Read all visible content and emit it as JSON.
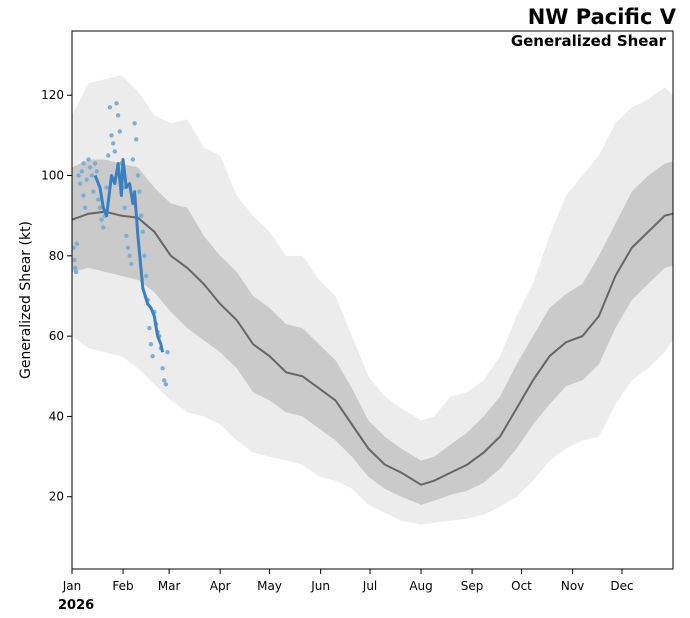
{
  "chart_data": {
    "type": "line",
    "title": "NW Pacific V",
    "subtitle": "Generalized Shear",
    "ylabel": "Generalized Shear (kt)",
    "xlabel": "",
    "year_label": "2026",
    "xlim": [
      0,
      365
    ],
    "ylim": [
      2,
      136
    ],
    "y_ticks": [
      20,
      40,
      60,
      80,
      100,
      120
    ],
    "x_ticks": [
      {
        "label": "Jan",
        "day": 0
      },
      {
        "label": "Feb",
        "day": 31
      },
      {
        "label": "Mar",
        "day": 59
      },
      {
        "label": "Apr",
        "day": 90
      },
      {
        "label": "May",
        "day": 120
      },
      {
        "label": "Jun",
        "day": 151
      },
      {
        "label": "Jul",
        "day": 181
      },
      {
        "label": "Aug",
        "day": 212
      },
      {
        "label": "Sep",
        "day": 243
      },
      {
        "label": "Oct",
        "day": 273
      },
      {
        "label": "Nov",
        "day": 304
      },
      {
        "label": "Dec",
        "day": 334
      }
    ],
    "colors": {
      "outer_band": "#ececec",
      "inner_band": "#cacaca",
      "climatology": "#666666",
      "observed": "#3a7fbf",
      "points": "#7aafd6"
    },
    "series": [
      {
        "name": "climatology_mean",
        "x": [
          0,
          10,
          20,
          30,
          40,
          50,
          60,
          70,
          80,
          90,
          100,
          110,
          120,
          130,
          140,
          150,
          160,
          170,
          180,
          190,
          200,
          212,
          220,
          230,
          240,
          250,
          260,
          270,
          280,
          290,
          300,
          310,
          320,
          330,
          340,
          350,
          360,
          365
        ],
        "y": [
          89,
          90.5,
          91,
          90,
          89.5,
          86,
          80,
          77,
          73,
          68,
          64,
          58,
          55,
          51,
          50,
          47,
          44,
          38,
          32,
          28,
          26,
          23,
          24,
          26,
          28,
          31,
          35,
          42,
          49,
          55,
          58.5,
          60,
          65,
          75,
          82,
          86,
          90,
          90.5
        ]
      },
      {
        "name": "inner_band_upper",
        "x": [
          0,
          10,
          20,
          30,
          40,
          50,
          60,
          70,
          80,
          90,
          100,
          110,
          120,
          130,
          140,
          150,
          160,
          170,
          180,
          190,
          200,
          212,
          220,
          230,
          240,
          250,
          260,
          270,
          280,
          290,
          300,
          310,
          320,
          330,
          340,
          350,
          360,
          365
        ],
        "y": [
          102,
          104,
          104,
          103,
          102,
          97,
          93,
          92,
          85,
          80,
          76,
          70,
          67,
          63,
          62,
          58,
          54,
          47,
          39,
          35,
          32,
          29,
          30,
          33,
          36,
          40,
          45,
          53,
          60,
          67,
          70.5,
          73,
          80,
          88,
          96,
          100,
          103,
          103.5
        ]
      },
      {
        "name": "inner_band_lower",
        "x": [
          0,
          10,
          20,
          30,
          40,
          50,
          60,
          70,
          80,
          90,
          100,
          110,
          120,
          130,
          140,
          150,
          160,
          170,
          180,
          190,
          200,
          212,
          220,
          230,
          240,
          250,
          260,
          270,
          280,
          290,
          300,
          310,
          320,
          330,
          340,
          350,
          360,
          365
        ],
        "y": [
          76,
          77,
          76,
          75,
          74,
          71,
          66,
          62,
          59,
          56,
          52,
          46,
          44,
          41,
          40,
          37,
          34,
          30,
          25,
          22,
          20,
          18,
          19,
          20.5,
          21.5,
          23.5,
          27,
          32,
          38,
          43,
          47.5,
          49,
          53,
          62,
          69,
          73,
          77,
          77.5
        ]
      },
      {
        "name": "outer_band_upper",
        "x": [
          0,
          10,
          20,
          30,
          40,
          50,
          60,
          70,
          80,
          90,
          100,
          110,
          120,
          130,
          140,
          150,
          160,
          170,
          180,
          190,
          200,
          212,
          220,
          230,
          240,
          250,
          260,
          270,
          280,
          290,
          300,
          310,
          320,
          330,
          340,
          350,
          360,
          365
        ],
        "y": [
          115,
          123,
          124,
          125,
          121,
          115,
          113,
          114,
          107,
          105,
          95,
          90,
          86,
          80,
          80,
          74,
          70,
          60,
          50,
          45,
          42,
          39,
          40,
          45,
          46,
          49,
          55,
          65,
          73,
          85,
          95,
          100,
          105,
          113,
          117,
          119,
          122,
          120
        ]
      },
      {
        "name": "outer_band_lower",
        "x": [
          0,
          10,
          20,
          30,
          40,
          50,
          60,
          70,
          80,
          90,
          100,
          110,
          120,
          130,
          140,
          150,
          160,
          170,
          180,
          190,
          200,
          212,
          220,
          230,
          240,
          250,
          260,
          270,
          280,
          290,
          300,
          310,
          320,
          330,
          340,
          350,
          360,
          365
        ],
        "y": [
          60,
          57,
          56,
          55,
          52,
          48,
          44,
          41,
          40,
          38,
          34,
          31,
          30,
          29,
          28,
          25,
          24,
          22,
          18,
          16,
          14,
          13,
          13.5,
          14,
          14.5,
          15.5,
          17.5,
          20,
          24,
          29,
          32,
          34,
          35,
          43,
          49,
          52,
          56,
          59
        ]
      },
      {
        "name": "observed_2026",
        "x": [
          14,
          17,
          19,
          21,
          24,
          26,
          28,
          30,
          31,
          33,
          35,
          37,
          38,
          40,
          43,
          46,
          48,
          50,
          52,
          54,
          55
        ],
        "y": [
          100,
          97,
          92,
          90,
          100,
          98,
          103,
          95,
          104,
          97,
          98,
          93,
          96,
          85,
          72,
          68,
          67,
          65,
          60,
          58,
          56
        ]
      }
    ],
    "scatter": {
      "name": "observations",
      "x": [
        1,
        1.5,
        2,
        2.5,
        3,
        4,
        5,
        6,
        7,
        7,
        8,
        9,
        10,
        11,
        12,
        13,
        14,
        15,
        16,
        17,
        18,
        19,
        20,
        21,
        22,
        23,
        24,
        25,
        26,
        27,
        28,
        29,
        30,
        31,
        32,
        33,
        34,
        35,
        36,
        37,
        38,
        39,
        40,
        41,
        42,
        43,
        44,
        45,
        46,
        47,
        48,
        49,
        50,
        51,
        52,
        53,
        54,
        55,
        56,
        57,
        58
      ],
      "y": [
        82,
        79,
        77,
        76,
        83,
        100,
        98,
        101,
        103,
        95,
        92,
        99,
        104,
        102,
        100,
        96,
        103,
        101,
        94,
        92,
        89,
        87,
        90,
        97,
        105,
        117,
        110,
        108,
        106,
        118,
        115,
        111,
        103,
        97,
        92,
        85,
        82,
        80,
        78,
        104,
        113,
        109,
        100,
        96,
        90,
        86,
        80,
        75,
        69,
        62,
        58,
        55,
        66,
        63,
        61,
        60,
        57,
        52,
        49,
        48,
        56
      ]
    }
  }
}
